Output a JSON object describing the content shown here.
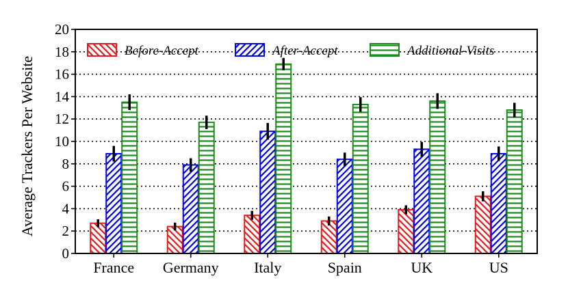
{
  "chart_data": {
    "type": "bar",
    "title": "",
    "xlabel": "",
    "ylabel": "Average Trackers Per Website",
    "ylim": [
      0,
      20
    ],
    "yticks": [
      0,
      2,
      4,
      6,
      8,
      10,
      12,
      14,
      16,
      18,
      20
    ],
    "categories": [
      "France",
      "Germany",
      "Italy",
      "Spain",
      "UK",
      "US"
    ],
    "grid": "horizontal dotted",
    "legend_position": "top",
    "series": [
      {
        "name": "Before-Accept",
        "color": "#e41a1c",
        "hatch": "diagonal-backslash",
        "values": [
          2.7,
          2.4,
          3.4,
          2.9,
          3.9,
          5.1
        ],
        "errors": [
          0.35,
          0.35,
          0.4,
          0.4,
          0.4,
          0.45
        ]
      },
      {
        "name": "After-Accept",
        "color": "#0000ee",
        "hatch": "diagonal-forward",
        "values": [
          8.9,
          7.9,
          10.9,
          8.4,
          9.3,
          8.9
        ],
        "errors": [
          0.7,
          0.6,
          0.75,
          0.6,
          0.65,
          0.65
        ]
      },
      {
        "name": "Additional-Visits",
        "color": "#1a8a1a",
        "hatch": "horizontal",
        "values": [
          13.5,
          11.7,
          16.9,
          13.3,
          13.6,
          12.8
        ],
        "errors": [
          0.7,
          0.6,
          0.55,
          0.65,
          0.7,
          0.65
        ]
      }
    ]
  }
}
